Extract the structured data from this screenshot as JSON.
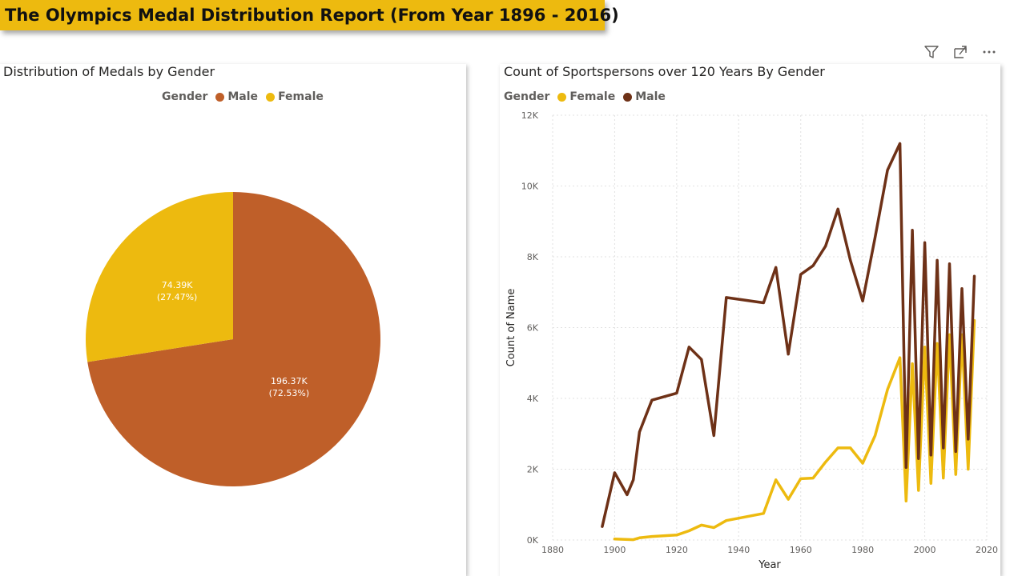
{
  "report": {
    "title": "The Olympics Medal Distribution Report (From Year 1896 - 2016)"
  },
  "toolbar": {
    "icons": [
      "filter-icon",
      "focus-mode-icon",
      "more-options-icon"
    ]
  },
  "pie": {
    "title": "Distribution of Medals by Gender",
    "legend_title": "Gender",
    "legend": [
      {
        "name": "Male",
        "color": "#bf5f29"
      },
      {
        "name": "Female",
        "color": "#edba0f"
      }
    ]
  },
  "line": {
    "title": "Count of Sportspersons over 120 Years By Gender",
    "legend_title": "Gender",
    "legend": [
      {
        "name": "Female",
        "color": "#edba0f"
      },
      {
        "name": "Male",
        "color": "#6e3117"
      }
    ]
  },
  "chart_data": [
    {
      "type": "pie",
      "title": "Distribution of Medals by Gender",
      "legend_title": "Gender",
      "slices": [
        {
          "name": "Male",
          "value": 196370,
          "label": "196.37K",
          "percent_label": "(72.53%)",
          "color": "#bf5f29"
        },
        {
          "name": "Female",
          "value": 74390,
          "label": "74.39K",
          "percent_label": "(27.47%)",
          "color": "#edba0f"
        }
      ]
    },
    {
      "type": "line",
      "title": "Count of Sportspersons over 120 Years By Gender",
      "xlabel": "Year",
      "ylabel": "Count of Name",
      "xlim": [
        1880,
        2020
      ],
      "ylim": [
        0,
        12000
      ],
      "xticks": [
        "1880",
        "1900",
        "1920",
        "1940",
        "1960",
        "1980",
        "2000",
        "2020"
      ],
      "yticks": [
        "0K",
        "2K",
        "4K",
        "6K",
        "8K",
        "10K",
        "12K"
      ],
      "grid": true,
      "legend_position": "top-left",
      "series": [
        {
          "name": "Female",
          "color": "#edba0f",
          "x": [
            1900,
            1906,
            1908,
            1912,
            1920,
            1924,
            1928,
            1932,
            1936,
            1948,
            1952,
            1956,
            1960,
            1964,
            1968,
            1972,
            1976,
            1980,
            1984,
            1988,
            1992,
            1994,
            1996,
            1998,
            2000,
            2002,
            2004,
            2006,
            2008,
            2010,
            2012,
            2014,
            2016
          ],
          "y": [
            30,
            10,
            60,
            100,
            140,
            260,
            420,
            350,
            550,
            750,
            1700,
            1150,
            1730,
            1750,
            2200,
            2600,
            2600,
            2170,
            2950,
            4250,
            5150,
            1100,
            4980,
            1400,
            5450,
            1600,
            5550,
            1750,
            5800,
            1850,
            5800,
            2000,
            6200
          ]
        },
        {
          "name": "Male",
          "color": "#6e3117",
          "x": [
            1896,
            1900,
            1904,
            1906,
            1908,
            1912,
            1920,
            1924,
            1928,
            1932,
            1936,
            1948,
            1952,
            1956,
            1960,
            1964,
            1968,
            1972,
            1976,
            1980,
            1984,
            1988,
            1992,
            1994,
            1996,
            1998,
            2000,
            2002,
            2004,
            2006,
            2008,
            2010,
            2012,
            2014,
            2016
          ],
          "y": [
            380,
            1900,
            1280,
            1700,
            3050,
            3950,
            4150,
            5450,
            5100,
            2950,
            6850,
            6700,
            7700,
            5250,
            7500,
            7750,
            8300,
            9350,
            7900,
            6750,
            8550,
            10450,
            11200,
            2050,
            8750,
            2300,
            8400,
            2400,
            7900,
            2600,
            7800,
            2500,
            7100,
            2850,
            7450
          ]
        }
      ]
    }
  ]
}
